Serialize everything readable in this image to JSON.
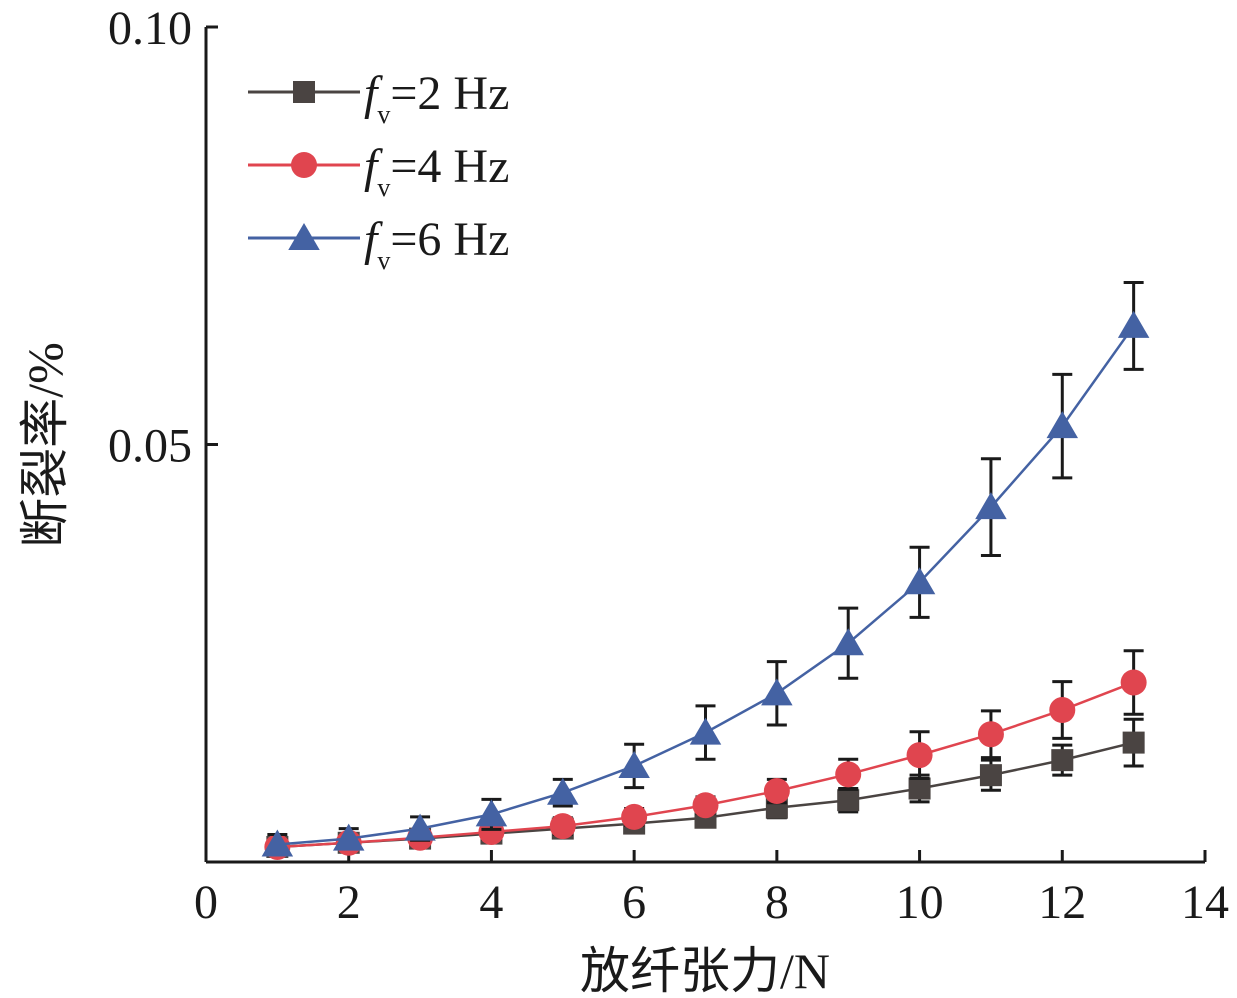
{
  "chart_data": {
    "type": "line",
    "title": "",
    "xlabel": "放纤张力/N",
    "ylabel": "断裂率/%",
    "xlim": [
      0,
      14
    ],
    "ylim": [
      0,
      0.1
    ],
    "x_ticks": [
      "0",
      "2",
      "4",
      "6",
      "8",
      "10",
      "12",
      "14"
    ],
    "y_ticks": [
      "0.05",
      "0.10"
    ],
    "legend_position": "top-left",
    "grid": false,
    "x": [
      1,
      2,
      3,
      4,
      5,
      6,
      7,
      8,
      9,
      10,
      11,
      12,
      13
    ],
    "series": [
      {
        "name": "f",
        "subscript": "v",
        "suffix": "=2 Hz",
        "color": "#4a4442",
        "marker": "square",
        "values": [
          0.0018,
          0.0023,
          0.0028,
          0.0034,
          0.004,
          0.0046,
          0.0053,
          0.0065,
          0.0074,
          0.0088,
          0.0104,
          0.0122,
          0.0143
        ],
        "errors": [
          0.0008,
          0.0008,
          0.0008,
          0.0009,
          0.001,
          0.001,
          0.001,
          0.0012,
          0.0014,
          0.0016,
          0.0018,
          0.0018,
          0.0028
        ]
      },
      {
        "name": "f",
        "subscript": "v",
        "suffix": "=4 Hz",
        "color": "#e0454f",
        "marker": "circle",
        "values": [
          0.0018,
          0.0023,
          0.0029,
          0.0036,
          0.0043,
          0.0054,
          0.0068,
          0.0085,
          0.0105,
          0.0128,
          0.0153,
          0.0182,
          0.0215
        ],
        "errors": [
          0.0008,
          0.0008,
          0.0008,
          0.0009,
          0.001,
          0.001,
          0.001,
          0.0014,
          0.0018,
          0.0028,
          0.0028,
          0.0034,
          0.0038
        ]
      },
      {
        "name": "f",
        "subscript": "v",
        "suffix": "=6 Hz",
        "color": "#4462a3",
        "marker": "triangle",
        "values": [
          0.0021,
          0.0028,
          0.004,
          0.0057,
          0.0083,
          0.0115,
          0.0155,
          0.0202,
          0.0262,
          0.0335,
          0.0425,
          0.0522,
          0.0642
        ],
        "errors": [
          0.0012,
          0.0012,
          0.0014,
          0.0018,
          0.0016,
          0.0026,
          0.0032,
          0.0038,
          0.0042,
          0.0042,
          0.0058,
          0.0062,
          0.0052
        ]
      }
    ]
  }
}
